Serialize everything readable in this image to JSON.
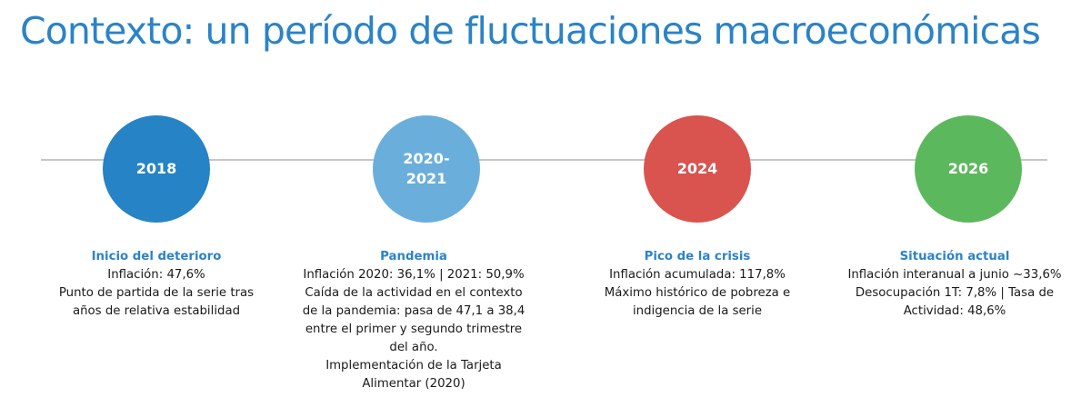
{
  "title": "Contexto: un período de fluctuaciones macroeconómicas",
  "colors": {
    "title": "#2b83c7",
    "heading": "#2b83c7",
    "timeline_line": "#c7c7c7",
    "circle_2018": "#2683c6",
    "circle_2020": "#6aaedc",
    "circle_2024": "#d9534f",
    "circle_2026": "#5cb85c"
  },
  "milestones": [
    {
      "label_lines": [
        "2018"
      ],
      "heading": "Inicio del deterioro",
      "lines": [
        "Inflación: 47,6%",
        "Punto de partida de la serie tras",
        "años de relativa estabilidad"
      ]
    },
    {
      "label_lines": [
        "2020-",
        "2021"
      ],
      "heading": "Pandemia",
      "lines": [
        "Inflación 2020: 36,1% | 2021: 50,9%",
        "Caída de la actividad en el contexto",
        "de la pandemia: pasa de 47,1 a 38,4",
        "entre el primer y segundo trimestre",
        "del año.",
        "Implementación de la Tarjeta",
        "Alimentar (2020)"
      ]
    },
    {
      "label_lines": [
        "2024"
      ],
      "heading": "Pico de la crisis",
      "lines": [
        "Inflación acumulada: 117,8%",
        "Máximo histórico de pobreza e",
        "indigencia de la serie"
      ]
    },
    {
      "label_lines": [
        "2026"
      ],
      "heading": "Situación actual",
      "lines": [
        "Inflación interanual a junio ~33,6%",
        "Desocupación 1T: 7,8% | Tasa de",
        "Actividad: 48,6%"
      ]
    }
  ]
}
